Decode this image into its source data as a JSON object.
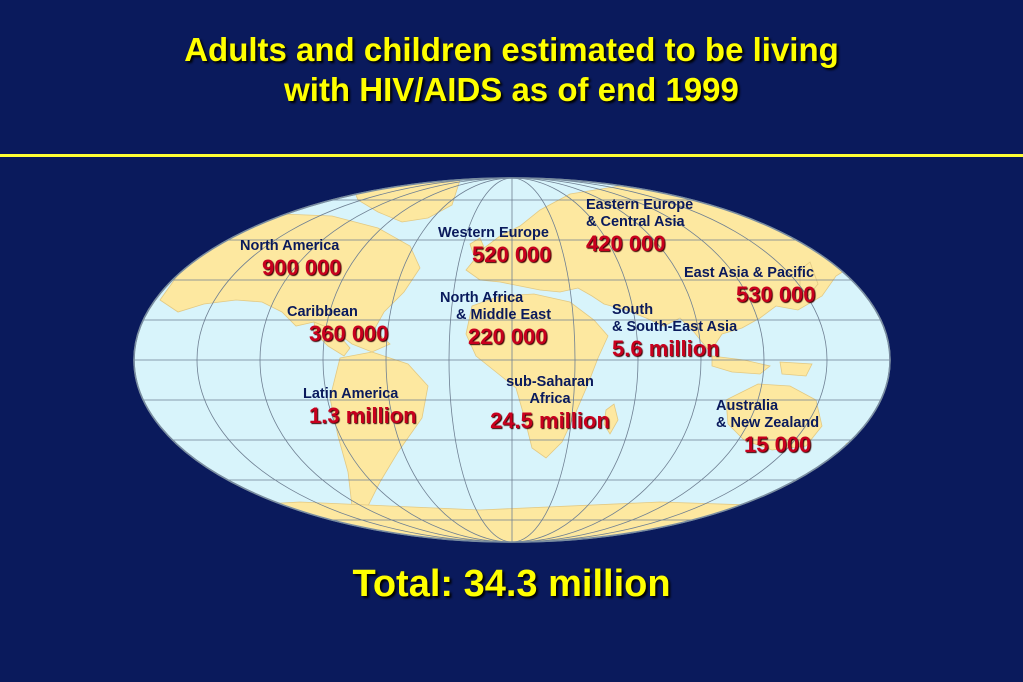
{
  "title": {
    "line1": "Adults and children estimated to be living",
    "line2": "with HIV/AIDS as of end 1999"
  },
  "regions": {
    "north_america": {
      "name_lines": [
        "North America"
      ],
      "value": "900 000"
    },
    "caribbean": {
      "name_lines": [
        "Caribbean"
      ],
      "value": "360 000"
    },
    "latin_america": {
      "name_lines": [
        "Latin America"
      ],
      "value": "1.3 million"
    },
    "western_europe": {
      "name_lines": [
        "Western Europe"
      ],
      "value": "520 000"
    },
    "eastern_europe": {
      "name_lines": [
        "Eastern Europe",
        "& Central Asia"
      ],
      "value": "420 000"
    },
    "east_asia": {
      "name_lines": [
        "East Asia & Pacific"
      ],
      "value": "530 000"
    },
    "north_africa": {
      "name_lines": [
        "North Africa",
        "& Middle East"
      ],
      "value": "220 000"
    },
    "south_asia": {
      "name_lines": [
        "South",
        "& South-East Asia"
      ],
      "value": "5.6 million"
    },
    "sub_saharan": {
      "name_lines": [
        "sub-Saharan",
        "Africa"
      ],
      "value": "24.5 million"
    },
    "australia": {
      "name_lines": [
        "Australia",
        "& New Zealand"
      ],
      "value": "15 000"
    }
  },
  "total": "Total: 34.3 million",
  "colors": {
    "background": "#0a1a5c",
    "title": "#ffff00",
    "ocean": "#d8f4fb",
    "land": "#fde8a0",
    "value": "#c8001e"
  },
  "icons": [
    "world-map-icon"
  ]
}
